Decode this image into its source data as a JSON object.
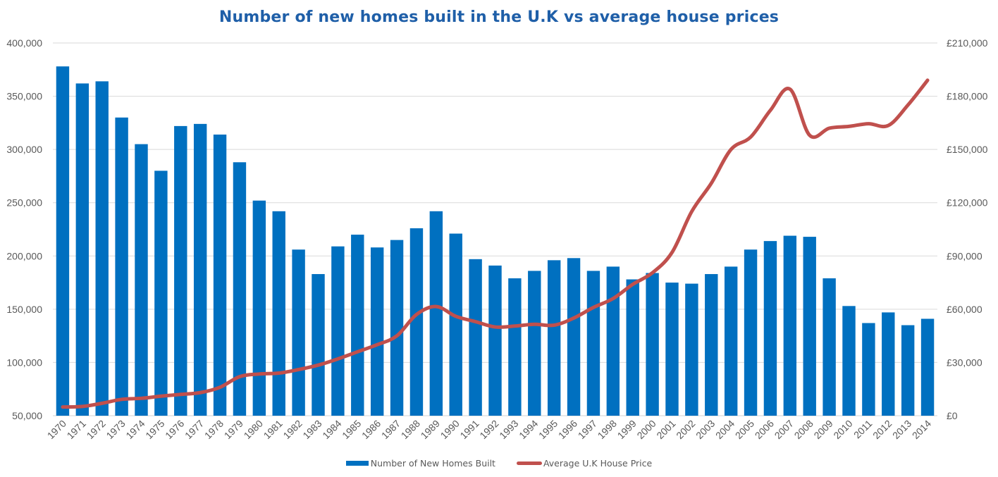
{
  "chart_data": {
    "type": "bar",
    "title": "Number of new homes built in the U.K vs average house prices",
    "xlabel": "",
    "ylabel": "",
    "y2label": "",
    "categories": [
      "1970",
      "1971",
      "1972",
      "1973",
      "1974",
      "1975",
      "1976",
      "1977",
      "1978",
      "1979",
      "1980",
      "1981",
      "1982",
      "1983",
      "1984",
      "1985",
      "1986",
      "1987",
      "1988",
      "1989",
      "1990",
      "1991",
      "1992",
      "1993",
      "1994",
      "1995",
      "1996",
      "1997",
      "1998",
      "1999",
      "2000",
      "2001",
      "2002",
      "2003",
      "2004",
      "2005",
      "2006",
      "2007",
      "2008",
      "2009",
      "2010",
      "2011",
      "2012",
      "2013",
      "2014"
    ],
    "series": [
      {
        "name": "Number of New Homes Built",
        "type": "bar",
        "axis": "left",
        "color": "#0070c0",
        "values": [
          378000,
          362000,
          364000,
          330000,
          305000,
          280000,
          322000,
          324000,
          314000,
          288000,
          252000,
          242000,
          206000,
          183000,
          209000,
          220000,
          208000,
          215000,
          226000,
          242000,
          221000,
          197000,
          191000,
          179000,
          186000,
          196000,
          198000,
          186000,
          190000,
          178000,
          184000,
          175000,
          174000,
          183000,
          190000,
          206000,
          214000,
          219000,
          218000,
          179000,
          153000,
          137000,
          147000,
          135000,
          141000
        ]
      },
      {
        "name": "Average U.K House Price",
        "type": "line",
        "axis": "right",
        "color": "#c0504d",
        "values": [
          4900,
          5200,
          7000,
          9200,
          9800,
          11000,
          12000,
          13000,
          16000,
          22000,
          23500,
          24000,
          26000,
          28500,
          32000,
          36000,
          40000,
          45000,
          57000,
          61500,
          56000,
          53000,
          50000,
          50500,
          51500,
          51000,
          55000,
          61000,
          66000,
          74000,
          80500,
          92000,
          115000,
          131000,
          150000,
          157000,
          172000,
          184000,
          158000,
          162000,
          163000,
          164500,
          163500,
          175000,
          189000
        ]
      }
    ],
    "y_left": {
      "range": [
        50000,
        400000
      ],
      "ticks": [
        "50,000",
        "100,000",
        "150,000",
        "200,000",
        "250,000",
        "300,000",
        "350,000",
        "400,000"
      ],
      "tick_values": [
        50000,
        100000,
        150000,
        200000,
        250000,
        300000,
        350000,
        400000
      ]
    },
    "y_right": {
      "range": [
        0,
        210000
      ],
      "ticks": [
        "£0",
        "£30,000",
        "£60,000",
        "£90,000",
        "£120,000",
        "£150,000",
        "£180,000",
        "£210,000"
      ],
      "tick_values": [
        0,
        30000,
        60000,
        90000,
        120000,
        150000,
        180000,
        210000
      ]
    },
    "grid": true,
    "legend": {
      "position": "bottom",
      "entries": [
        {
          "label": "Number of New Homes Built",
          "symbol": "bar",
          "color": "#0070c0"
        },
        {
          "label": "Average U.K House Price",
          "symbol": "line",
          "color": "#c0504d"
        }
      ]
    }
  }
}
